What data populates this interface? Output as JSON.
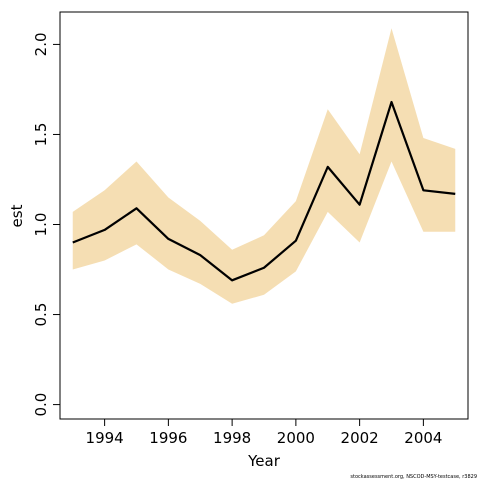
{
  "chart_data": {
    "type": "line",
    "xlabel": "Year",
    "ylabel": "est",
    "footnote": "stockassessment.org, NSCOD-MSY-testcase, r3829",
    "xlim": [
      1992.6,
      2005.4
    ],
    "ylim": [
      -0.08,
      2.18
    ],
    "x_ticks": [
      1994,
      1996,
      1998,
      2000,
      2002,
      2004
    ],
    "y_ticks": [
      0.0,
      0.5,
      1.0,
      1.5,
      2.0
    ],
    "x_tick_labels": [
      "1994",
      "1996",
      "1998",
      "2000",
      "2002",
      "2004"
    ],
    "y_tick_labels": [
      "0.0",
      "0.5",
      "1.0",
      "1.5",
      "2.0"
    ],
    "grid": false,
    "x": [
      1993,
      1994,
      1995,
      1996,
      1997,
      1998,
      1999,
      2000,
      2001,
      2002,
      2003,
      2004,
      2005
    ],
    "series": [
      {
        "role": "estimate",
        "color": "#000000",
        "values": [
          0.9,
          0.97,
          1.09,
          0.92,
          0.83,
          0.69,
          0.76,
          0.91,
          1.32,
          1.11,
          1.68,
          1.19,
          1.17
        ]
      },
      {
        "role": "lower",
        "color": "#f5deb3",
        "values": [
          0.75,
          0.8,
          0.89,
          0.75,
          0.67,
          0.56,
          0.61,
          0.74,
          1.07,
          0.9,
          1.35,
          0.96,
          0.96
        ]
      },
      {
        "role": "upper",
        "color": "#f5deb3",
        "values": [
          1.07,
          1.19,
          1.35,
          1.15,
          1.02,
          0.86,
          0.94,
          1.13,
          1.64,
          1.39,
          2.09,
          1.48,
          1.42
        ]
      }
    ]
  }
}
